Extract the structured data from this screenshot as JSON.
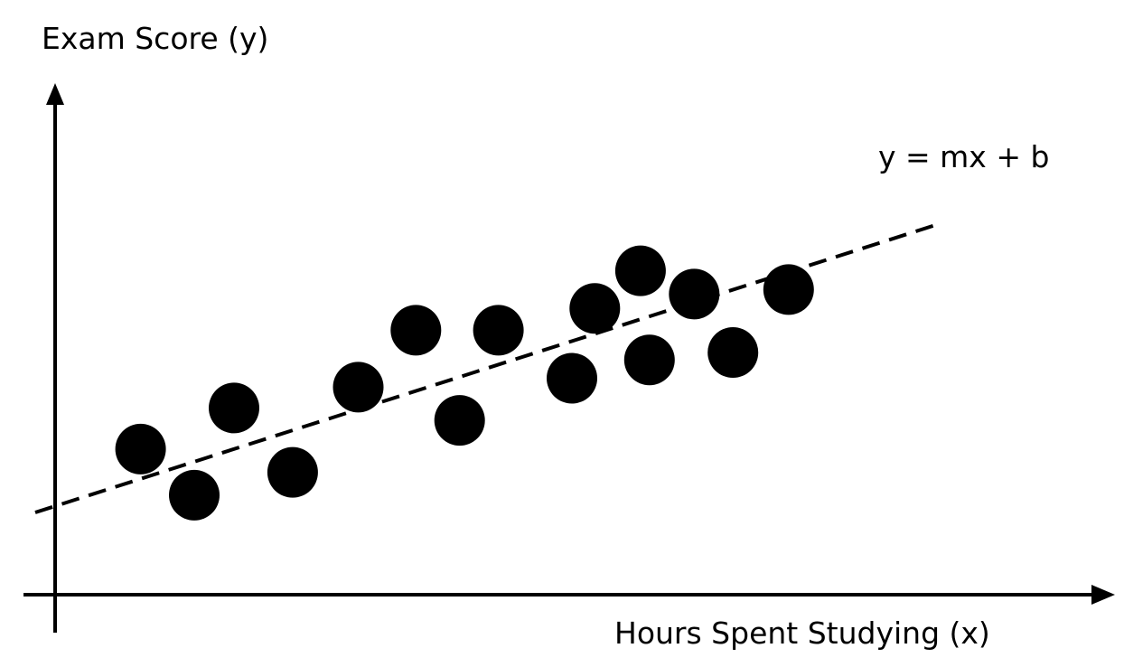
{
  "chart_data": {
    "type": "scatter",
    "ylabel": "Exam Score (y)",
    "xlabel": "Hours Spent Studying (x)",
    "annotation": "y = mx + b",
    "grid": false,
    "legend": "none",
    "xlim": [
      0,
      100
    ],
    "ylim": [
      0,
      100
    ],
    "points": [
      {
        "x": 8.6,
        "y": 29.4
      },
      {
        "x": 14.0,
        "y": 20.1
      },
      {
        "x": 18.0,
        "y": 37.7
      },
      {
        "x": 23.9,
        "y": 24.7
      },
      {
        "x": 30.5,
        "y": 41.9
      },
      {
        "x": 36.3,
        "y": 53.4
      },
      {
        "x": 40.7,
        "y": 35.2
      },
      {
        "x": 44.6,
        "y": 53.4
      },
      {
        "x": 52.0,
        "y": 43.7
      },
      {
        "x": 54.3,
        "y": 57.8
      },
      {
        "x": 58.9,
        "y": 65.4
      },
      {
        "x": 59.8,
        "y": 47.4
      },
      {
        "x": 64.3,
        "y": 60.7
      },
      {
        "x": 68.2,
        "y": 48.9
      },
      {
        "x": 73.8,
        "y": 61.6
      }
    ],
    "trendline": {
      "style": "dashed",
      "from": {
        "x": -2,
        "y": 16.6
      },
      "to": {
        "x": 89,
        "y": 74.9
      }
    },
    "colors": {
      "points": "#000000",
      "axes": "#000000",
      "trendline": "#000000"
    }
  }
}
